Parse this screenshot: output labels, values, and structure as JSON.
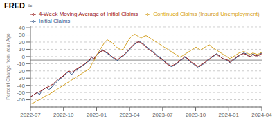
{
  "chart_data": {
    "type": "line",
    "ylabel": "Percent Change from Year Ago",
    "annotations": [
      "FRED",
      "≈"
    ],
    "x": [
      0,
      1,
      2,
      3,
      4,
      5,
      6,
      7,
      8,
      9,
      10,
      11,
      12,
      13,
      14,
      15,
      16,
      17,
      18,
      19,
      20,
      21,
      22,
      23,
      24,
      25,
      26,
      27,
      28,
      29,
      30,
      31,
      32,
      33,
      34,
      35,
      36,
      37,
      38,
      39,
      40,
      41,
      42,
      43,
      44,
      45,
      46,
      47,
      48,
      49,
      50,
      51,
      52,
      53,
      54,
      55,
      56,
      57,
      58,
      59,
      60,
      61,
      62,
      63,
      64,
      65,
      66,
      67,
      68,
      69,
      70,
      71,
      72,
      73,
      74,
      75,
      76,
      77,
      78,
      79,
      80,
      81,
      82,
      83,
      84,
      85,
      86,
      87,
      88,
      89,
      90,
      91,
      92,
      93,
      94,
      95,
      96,
      97,
      98,
      99,
      100,
      101,
      102
    ],
    "xlim": [
      0,
      102
    ],
    "xticks": [
      {
        "value": 0,
        "label": "2022-07"
      },
      {
        "value": 14.571428571428571,
        "label": "2022-10"
      },
      {
        "value": 29.142857142857142,
        "label": "2023-01"
      },
      {
        "value": 43.714285714285715,
        "label": "2023-04"
      },
      {
        "value": 58.285714285714285,
        "label": "2023-07"
      },
      {
        "value": 72.85714285714286,
        "label": "2023-10"
      },
      {
        "value": 87.42857142857143,
        "label": "2024-01"
      },
      {
        "value": 102,
        "label": "2024-04"
      }
    ],
    "ylim": [
      -70,
      42
    ],
    "yticks": [
      -60,
      -50,
      -40,
      -30,
      -20,
      -10,
      0,
      10,
      20,
      30,
      40
    ],
    "grid": true,
    "legend": "top",
    "reference_line": {
      "y": -5,
      "color": "#888888"
    },
    "series": [
      {
        "name": "Initial Claims",
        "color": "#3a5a8a",
        "values": [
          -56,
          -54,
          -52,
          -50,
          -53,
          -48,
          -45,
          -43,
          -46,
          -44,
          -40,
          -37,
          -34,
          -31,
          -29,
          -26,
          -23,
          -21,
          -25,
          -23,
          -19,
          -17,
          -15,
          -13,
          -11,
          -8,
          -6,
          -1,
          -4,
          1,
          4,
          7,
          9,
          6,
          4,
          2,
          -1,
          -3,
          -6,
          -4,
          -1,
          1,
          4,
          7,
          11,
          14,
          17,
          19,
          21,
          19,
          17,
          14,
          11,
          9,
          7,
          4,
          1,
          -1,
          -3,
          -6,
          -9,
          -11,
          -14,
          -13,
          -11,
          -9,
          -6,
          -4,
          -1,
          -3,
          -6,
          -9,
          -11,
          -13,
          -16,
          -13,
          -11,
          -9,
          -6,
          -4,
          -1,
          1,
          4,
          2,
          -1,
          -3,
          -4,
          -6,
          -9,
          -6,
          -4,
          -1,
          1,
          3,
          5,
          4,
          2,
          0,
          4,
          2,
          1,
          3,
          5
        ]
      },
      {
        "name": "4-Week Moving Average of Initial Claims",
        "color": "#992222",
        "values": [
          -56,
          -54,
          -52,
          -50,
          -49,
          -47,
          -45,
          -43,
          -42,
          -40,
          -38,
          -35,
          -32,
          -30,
          -28,
          -25,
          -22,
          -20,
          -22,
          -21,
          -18,
          -16,
          -14,
          -12,
          -10,
          -7,
          -5,
          0,
          -3,
          2,
          5,
          7,
          8,
          7,
          5,
          3,
          0,
          -2,
          -4,
          -3,
          0,
          2,
          5,
          8,
          12,
          15,
          18,
          20,
          20,
          18,
          16,
          13,
          10,
          8,
          6,
          3,
          0,
          -2,
          -4,
          -7,
          -10,
          -12,
          -13,
          -12,
          -10,
          -8,
          -5,
          -3,
          0,
          -2,
          -5,
          -8,
          -10,
          -12,
          -14,
          -12,
          -10,
          -8,
          -5,
          -3,
          0,
          2,
          3,
          1,
          -1,
          -3,
          -4,
          -5,
          -8,
          -5,
          -3,
          0,
          2,
          3,
          4,
          3,
          1,
          0,
          3,
          1,
          1,
          2,
          4
        ]
      },
      {
        "name": "Continued Claims (Insured Unemployment)",
        "color": "#d4a020",
        "values": [
          -66,
          -65,
          -63,
          -61,
          -60,
          -58,
          -56,
          -54,
          -53,
          -51,
          -49,
          -47,
          -45,
          -43,
          -41,
          -39,
          -37,
          -35,
          -33,
          -31,
          -29,
          -27,
          -25,
          -23,
          -21,
          -19,
          -17,
          -11,
          -6,
          1,
          6,
          11,
          16,
          21,
          23,
          21,
          19,
          16,
          13,
          11,
          9,
          11,
          16,
          21,
          26,
          29,
          31,
          29,
          27,
          26,
          28,
          29,
          27,
          25,
          23,
          21,
          19,
          17,
          15,
          13,
          11,
          9,
          7,
          5,
          3,
          1,
          -1,
          1,
          3,
          5,
          7,
          9,
          11,
          13,
          11,
          9,
          11,
          13,
          15,
          16,
          13,
          11,
          9,
          7,
          5,
          3,
          1,
          -1,
          -3,
          -1,
          1,
          3,
          5,
          6,
          7,
          6,
          4,
          3,
          5,
          4,
          3,
          4,
          6
        ]
      }
    ]
  }
}
